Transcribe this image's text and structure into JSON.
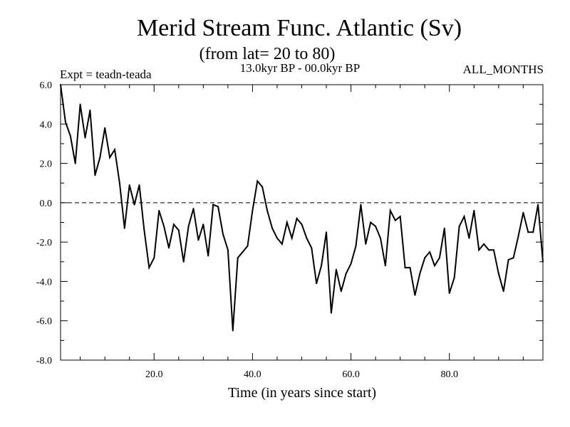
{
  "chart_data": {
    "type": "line",
    "title": "Merid Stream Func. Atlantic (Sv)",
    "subtitle": "(from lat= 20 to 80)",
    "expt_label": "Expt = teadn-teada",
    "period_label": "13.0kyr BP - 00.0kyr BP",
    "months_label": "ALL_MONTHS",
    "xlabel": "Time (in years since start)",
    "ylabel": "",
    "xlim": [
      1,
      99
    ],
    "ylim": [
      -8,
      6
    ],
    "x_ticks": [
      20,
      40,
      60,
      80
    ],
    "x_tick_labels": [
      "20.0",
      "40.0",
      "60.0",
      "80.0"
    ],
    "y_ticks": [
      6,
      4,
      2,
      0,
      -2,
      -4,
      -6,
      -8
    ],
    "y_tick_labels": [
      "6.0",
      "4.0",
      "2.0",
      "0.0",
      "-2.0",
      "-4.0",
      "-6.0",
      "-8.0"
    ],
    "reference_line": 0,
    "series": [
      {
        "name": "Merid Stream Func. Atlantic",
        "x": [
          1,
          2,
          3,
          4,
          5,
          6,
          7,
          8,
          9,
          10,
          11,
          12,
          13,
          14,
          15,
          16,
          17,
          18,
          19,
          20,
          21,
          22,
          23,
          24,
          25,
          26,
          27,
          28,
          29,
          30,
          31,
          32,
          33,
          34,
          35,
          36,
          37,
          38,
          39,
          40,
          41,
          42,
          43,
          44,
          45,
          46,
          47,
          48,
          49,
          50,
          51,
          52,
          53,
          54,
          55,
          56,
          57,
          58,
          59,
          60,
          61,
          62,
          63,
          64,
          65,
          66,
          67,
          68,
          69,
          70,
          71,
          72,
          73,
          74,
          75,
          76,
          77,
          78,
          79,
          80,
          81,
          82,
          83,
          84,
          85,
          86,
          87,
          88,
          89,
          90,
          91,
          92,
          93,
          94,
          95,
          96,
          97,
          98,
          99
        ],
        "values": [
          6.0,
          4.1,
          3.4,
          2.0,
          5.0,
          3.3,
          4.7,
          1.4,
          2.3,
          3.8,
          2.3,
          2.7,
          1.0,
          -1.3,
          0.9,
          -0.1,
          0.9,
          -1.4,
          -3.3,
          -2.8,
          -0.4,
          -1.2,
          -2.3,
          -1.1,
          -1.4,
          -3.0,
          -1.2,
          -0.3,
          -1.9,
          -1.1,
          -2.7,
          -0.1,
          -0.2,
          -1.6,
          -2.4,
          -6.5,
          -2.8,
          -2.5,
          -2.2,
          -0.4,
          1.1,
          0.8,
          -0.4,
          -1.3,
          -1.8,
          -2.1,
          -1.0,
          -1.8,
          -0.8,
          -1.1,
          -1.8,
          -2.3,
          -4.1,
          -3.2,
          -1.5,
          -5.6,
          -3.4,
          -4.5,
          -3.6,
          -3.1,
          -2.2,
          -0.1,
          -2.1,
          -1.0,
          -1.2,
          -1.8,
          -3.2,
          -0.4,
          -0.9,
          -0.7,
          -3.3,
          -3.3,
          -4.7,
          -3.6,
          -2.8,
          -2.5,
          -3.2,
          -2.8,
          -1.3,
          -4.6,
          -3.8,
          -1.2,
          -0.7,
          -1.8,
          -0.4,
          -2.4,
          -2.1,
          -2.4,
          -2.4,
          -3.6,
          -4.5,
          -2.9,
          -2.8,
          -1.7,
          -0.5,
          -1.5,
          -1.5,
          -0.1,
          -3.0
        ]
      }
    ]
  }
}
